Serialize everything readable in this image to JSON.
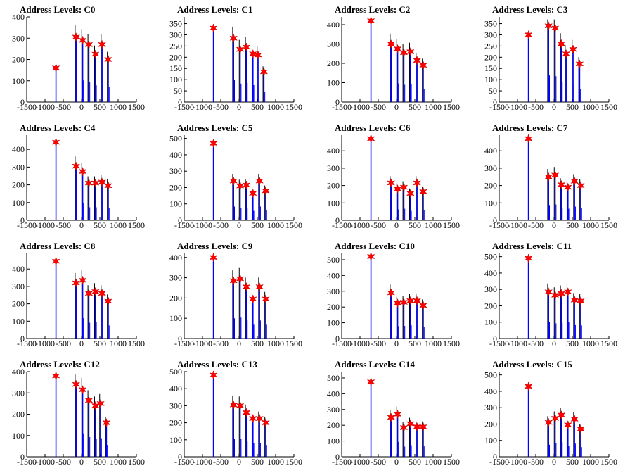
{
  "chart_data": [
    {
      "type": "bar",
      "title": "Address Levels: C0",
      "xlim": [
        -1500,
        1500
      ],
      "ylim": [
        0,
        400
      ],
      "xticks": [
        -1500,
        -1000,
        -500,
        0,
        500,
        1000,
        1500
      ],
      "yticks": [
        0,
        100,
        200,
        300,
        400
      ],
      "xtick_labels": [
        "-1500",
        "-1000",
        "-500",
        "0",
        "500",
        "1000",
        "1500"
      ],
      "ytick_labels": [
        "0",
        "100",
        "200",
        "300",
        "400"
      ],
      "peaks": [
        {
          "x": -700,
          "y": 160
        },
        {
          "x": -150,
          "y": 305
        },
        {
          "x": 30,
          "y": 290
        },
        {
          "x": 200,
          "y": 270
        },
        {
          "x": 380,
          "y": 225
        },
        {
          "x": 560,
          "y": 270
        },
        {
          "x": 730,
          "y": 200
        }
      ]
    },
    {
      "type": "bar",
      "title": "Address Levels: C1",
      "xlim": [
        -1500,
        1500
      ],
      "ylim": [
        0,
        380
      ],
      "xticks": [
        -1500,
        -1000,
        -500,
        0,
        500,
        1000,
        1500
      ],
      "yticks": [
        0,
        50,
        100,
        150,
        200,
        250,
        300,
        350
      ],
      "xtick_labels": [
        "-1500",
        "-1000",
        "-500",
        "0",
        "500",
        "1000",
        "1500"
      ],
      "ytick_labels": [
        "0",
        "50",
        "100",
        "150",
        "200",
        "250",
        "300",
        "350"
      ],
      "peaks": [
        {
          "x": -700,
          "y": 330
        },
        {
          "x": -150,
          "y": 285
        },
        {
          "x": 30,
          "y": 235
        },
        {
          "x": 200,
          "y": 245
        },
        {
          "x": 380,
          "y": 215
        },
        {
          "x": 520,
          "y": 210
        },
        {
          "x": 680,
          "y": 135
        }
      ]
    },
    {
      "type": "bar",
      "title": "Address Levels: C2",
      "xlim": [
        -1500,
        1500
      ],
      "ylim": [
        0,
        440
      ],
      "xticks": [
        -1500,
        -1000,
        -500,
        0,
        500,
        1000,
        1500
      ],
      "yticks": [
        0,
        100,
        200,
        300,
        400
      ],
      "xtick_labels": [
        "-1500",
        "-1000",
        "-500",
        "0",
        "500",
        "1000",
        "1500"
      ],
      "ytick_labels": [
        "0",
        "100",
        "200",
        "300",
        "400"
      ],
      "peaks": [
        {
          "x": -700,
          "y": 420
        },
        {
          "x": -150,
          "y": 300
        },
        {
          "x": 30,
          "y": 275
        },
        {
          "x": 200,
          "y": 255
        },
        {
          "x": 380,
          "y": 260
        },
        {
          "x": 560,
          "y": 215
        },
        {
          "x": 730,
          "y": 190
        }
      ]
    },
    {
      "type": "bar",
      "title": "Address Levels: C3",
      "xlim": [
        -1500,
        1500
      ],
      "ylim": [
        0,
        380
      ],
      "xticks": [
        -1500,
        -1000,
        -500,
        0,
        500,
        1000,
        1500
      ],
      "yticks": [
        0,
        50,
        100,
        150,
        200,
        250,
        300,
        350
      ],
      "xtick_labels": [
        "-1500",
        "-1000",
        "-500",
        "0",
        "500",
        "1000",
        "1500"
      ],
      "ytick_labels": [
        "0",
        "50",
        "100",
        "150",
        "200",
        "250",
        "300",
        "350"
      ],
      "peaks": [
        {
          "x": -700,
          "y": 300
        },
        {
          "x": -150,
          "y": 340
        },
        {
          "x": 30,
          "y": 330
        },
        {
          "x": 200,
          "y": 260
        },
        {
          "x": 330,
          "y": 215
        },
        {
          "x": 520,
          "y": 235
        },
        {
          "x": 700,
          "y": 170
        }
      ]
    },
    {
      "type": "bar",
      "title": "Address Levels: C4",
      "xlim": [
        -1500,
        1500
      ],
      "ylim": [
        0,
        480
      ],
      "xticks": [
        -1500,
        -1000,
        -500,
        0,
        500,
        1000,
        1500
      ],
      "yticks": [
        0,
        100,
        200,
        300,
        400
      ],
      "xtick_labels": [
        "-1500",
        "-1000",
        "-500",
        "0",
        "500",
        "1000",
        "1500"
      ],
      "ytick_labels": [
        "0",
        "100",
        "200",
        "300",
        "400"
      ],
      "peaks": [
        {
          "x": -700,
          "y": 440
        },
        {
          "x": -150,
          "y": 305
        },
        {
          "x": 30,
          "y": 275
        },
        {
          "x": 200,
          "y": 210
        },
        {
          "x": 380,
          "y": 210
        },
        {
          "x": 560,
          "y": 215
        },
        {
          "x": 730,
          "y": 195
        }
      ]
    },
    {
      "type": "bar",
      "title": "Address Levels: C5",
      "xlim": [
        -1500,
        1500
      ],
      "ylim": [
        0,
        520
      ],
      "xticks": [
        -1500,
        -1000,
        -500,
        0,
        500,
        1000,
        1500
      ],
      "yticks": [
        0,
        100,
        200,
        300,
        400,
        500
      ],
      "xtick_labels": [
        "-1500",
        "-1000",
        "-500",
        "0",
        "500",
        "1000",
        "1500"
      ],
      "ytick_labels": [
        "0",
        "100",
        "200",
        "300",
        "400",
        "500"
      ],
      "peaks": [
        {
          "x": -700,
          "y": 470
        },
        {
          "x": -150,
          "y": 240
        },
        {
          "x": 30,
          "y": 210
        },
        {
          "x": 200,
          "y": 215
        },
        {
          "x": 380,
          "y": 165
        },
        {
          "x": 560,
          "y": 240
        },
        {
          "x": 730,
          "y": 180
        }
      ]
    },
    {
      "type": "bar",
      "title": "Address Levels: C6",
      "xlim": [
        -1500,
        1500
      ],
      "ylim": [
        0,
        490
      ],
      "xticks": [
        -1500,
        -1000,
        -500,
        0,
        500,
        1000,
        1500
      ],
      "yticks": [
        0,
        100,
        200,
        300,
        400
      ],
      "xtick_labels": [
        "-1500",
        "-1000",
        "-500",
        "0",
        "500",
        "1000",
        "1500"
      ],
      "ytick_labels": [
        "0",
        "100",
        "200",
        "300",
        "400"
      ],
      "peaks": [
        {
          "x": -700,
          "y": 470
        },
        {
          "x": -150,
          "y": 215
        },
        {
          "x": 30,
          "y": 180
        },
        {
          "x": 200,
          "y": 190
        },
        {
          "x": 380,
          "y": 155
        },
        {
          "x": 560,
          "y": 215
        },
        {
          "x": 730,
          "y": 165
        }
      ]
    },
    {
      "type": "bar",
      "title": "Address Levels: C7",
      "xlim": [
        -1500,
        1500
      ],
      "ylim": [
        0,
        490
      ],
      "xticks": [
        -1500,
        -1000,
        -500,
        0,
        500,
        1000,
        1500
      ],
      "yticks": [
        0,
        100,
        200,
        300,
        400
      ],
      "xtick_labels": [
        "-1500",
        "-1000",
        "-500",
        "0",
        "500",
        "1000",
        "1500"
      ],
      "ytick_labels": [
        "0",
        "100",
        "200",
        "300",
        "400"
      ],
      "peaks": [
        {
          "x": -700,
          "y": 470
        },
        {
          "x": -150,
          "y": 250
        },
        {
          "x": 30,
          "y": 260
        },
        {
          "x": 200,
          "y": 205
        },
        {
          "x": 380,
          "y": 190
        },
        {
          "x": 560,
          "y": 225
        },
        {
          "x": 730,
          "y": 200
        }
      ]
    },
    {
      "type": "bar",
      "title": "Address Levels: C8",
      "xlim": [
        -1500,
        1500
      ],
      "ylim": [
        0,
        490
      ],
      "xticks": [
        -1500,
        -1000,
        -500,
        0,
        500,
        1000,
        1500
      ],
      "yticks": [
        0,
        100,
        200,
        300,
        400
      ],
      "xtick_labels": [
        "-1500",
        "-1000",
        "-500",
        "0",
        "500",
        "1000",
        "1500"
      ],
      "ytick_labels": [
        "0",
        "100",
        "200",
        "300",
        "400"
      ],
      "peaks": [
        {
          "x": -700,
          "y": 445
        },
        {
          "x": -150,
          "y": 320
        },
        {
          "x": 30,
          "y": 335
        },
        {
          "x": 200,
          "y": 260
        },
        {
          "x": 380,
          "y": 270
        },
        {
          "x": 560,
          "y": 260
        },
        {
          "x": 730,
          "y": 215
        }
      ]
    },
    {
      "type": "bar",
      "title": "Address Levels: C9",
      "xlim": [
        -1500,
        1500
      ],
      "ylim": [
        0,
        420
      ],
      "xticks": [
        -1500,
        -1000,
        -500,
        0,
        500,
        1000,
        1500
      ],
      "yticks": [
        0,
        100,
        200,
        300,
        400
      ],
      "xtick_labels": [
        "-1500",
        "-1000",
        "-500",
        "0",
        "500",
        "1000",
        "1500"
      ],
      "ytick_labels": [
        "0",
        "100",
        "200",
        "300",
        "400"
      ],
      "peaks": [
        {
          "x": -700,
          "y": 400
        },
        {
          "x": -150,
          "y": 285
        },
        {
          "x": 30,
          "y": 295
        },
        {
          "x": 200,
          "y": 255
        },
        {
          "x": 380,
          "y": 195
        },
        {
          "x": 560,
          "y": 255
        },
        {
          "x": 730,
          "y": 195
        }
      ]
    },
    {
      "type": "bar",
      "title": "Address Levels: C10",
      "xlim": [
        -1500,
        1500
      ],
      "ylim": [
        0,
        540
      ],
      "xticks": [
        -1500,
        -1000,
        -500,
        0,
        500,
        1000,
        1500
      ],
      "yticks": [
        0,
        100,
        200,
        300,
        400,
        500
      ],
      "xtick_labels": [
        "-1500",
        "-1000",
        "-500",
        "0",
        "500",
        "1000",
        "1500"
      ],
      "ytick_labels": [
        "0",
        "100",
        "200",
        "300",
        "400",
        "500"
      ],
      "peaks": [
        {
          "x": -700,
          "y": 520
        },
        {
          "x": -150,
          "y": 290
        },
        {
          "x": 30,
          "y": 225
        },
        {
          "x": 200,
          "y": 230
        },
        {
          "x": 380,
          "y": 240
        },
        {
          "x": 560,
          "y": 240
        },
        {
          "x": 730,
          "y": 210
        }
      ]
    },
    {
      "type": "bar",
      "title": "Address Levels: C11",
      "xlim": [
        -1500,
        1500
      ],
      "ylim": [
        0,
        520
      ],
      "xticks": [
        -1500,
        -1000,
        -500,
        0,
        500,
        1000,
        1500
      ],
      "yticks": [
        0,
        100,
        200,
        300,
        400,
        500
      ],
      "xtick_labels": [
        "-1500",
        "-1000",
        "-500",
        "0",
        "500",
        "1000",
        "1500"
      ],
      "ytick_labels": [
        "0",
        "100",
        "200",
        "300",
        "400",
        "500"
      ],
      "peaks": [
        {
          "x": -700,
          "y": 490
        },
        {
          "x": -150,
          "y": 285
        },
        {
          "x": 30,
          "y": 265
        },
        {
          "x": 200,
          "y": 275
        },
        {
          "x": 380,
          "y": 285
        },
        {
          "x": 560,
          "y": 235
        },
        {
          "x": 730,
          "y": 230
        }
      ]
    },
    {
      "type": "bar",
      "title": "Address Levels: C12",
      "xlim": [
        -1500,
        1500
      ],
      "ylim": [
        0,
        400
      ],
      "xticks": [
        -1500,
        -1000,
        -500,
        0,
        500,
        1000,
        1500
      ],
      "yticks": [
        0,
        100,
        200,
        300,
        400
      ],
      "xtick_labels": [
        "-1500",
        "-1000",
        "-500",
        "0",
        "500",
        "1000",
        "1500"
      ],
      "ytick_labels": [
        "0",
        "100",
        "200",
        "300",
        "400"
      ],
      "peaks": [
        {
          "x": -700,
          "y": 380
        },
        {
          "x": -150,
          "y": 340
        },
        {
          "x": 30,
          "y": 315
        },
        {
          "x": 200,
          "y": 265
        },
        {
          "x": 380,
          "y": 240
        },
        {
          "x": 520,
          "y": 250
        },
        {
          "x": 680,
          "y": 160
        }
      ]
    },
    {
      "type": "bar",
      "title": "Address Levels: C13",
      "xlim": [
        -1500,
        1500
      ],
      "ylim": [
        0,
        500
      ],
      "xticks": [
        -1500,
        -1000,
        -500,
        0,
        500,
        1000,
        1500
      ],
      "yticks": [
        0,
        100,
        200,
        300,
        400,
        500
      ],
      "xtick_labels": [
        "-1500",
        "-1000",
        "-500",
        "0",
        "500",
        "1000",
        "1500"
      ],
      "ytick_labels": [
        "0",
        "100",
        "200",
        "300",
        "400",
        "500"
      ],
      "peaks": [
        {
          "x": -700,
          "y": 480
        },
        {
          "x": -150,
          "y": 305
        },
        {
          "x": 30,
          "y": 300
        },
        {
          "x": 200,
          "y": 260
        },
        {
          "x": 380,
          "y": 225
        },
        {
          "x": 560,
          "y": 225
        },
        {
          "x": 730,
          "y": 200
        }
      ]
    },
    {
      "type": "bar",
      "title": "Address Levels: C14",
      "xlim": [
        -1500,
        1500
      ],
      "ylim": [
        0,
        540
      ],
      "xticks": [
        -1500,
        -1000,
        -500,
        0,
        500,
        1000,
        1500
      ],
      "yticks": [
        0,
        100,
        200,
        300,
        400,
        500
      ],
      "xtick_labels": [
        "-1500",
        "-1000",
        "-500",
        "0",
        "500",
        "1000",
        "1500"
      ],
      "ytick_labels": [
        "0",
        "100",
        "200",
        "300",
        "400",
        "500"
      ],
      "peaks": [
        {
          "x": -700,
          "y": 475
        },
        {
          "x": -150,
          "y": 250
        },
        {
          "x": 30,
          "y": 270
        },
        {
          "x": 200,
          "y": 185
        },
        {
          "x": 380,
          "y": 210
        },
        {
          "x": 560,
          "y": 190
        },
        {
          "x": 730,
          "y": 190
        }
      ]
    },
    {
      "type": "bar",
      "title": "Address Levels: C15",
      "xlim": [
        -1500,
        1500
      ],
      "ylim": [
        0,
        520
      ],
      "xticks": [
        -1500,
        -1000,
        -500,
        0,
        500,
        1000,
        1500
      ],
      "yticks": [
        0,
        100,
        200,
        300,
        400,
        500
      ],
      "xtick_labels": [
        "-1500",
        "-1000",
        "-500",
        "0",
        "500",
        "1000",
        "1500"
      ],
      "ytick_labels": [
        "0",
        "100",
        "200",
        "300",
        "400",
        "500"
      ],
      "peaks": [
        {
          "x": -700,
          "y": 430
        },
        {
          "x": -150,
          "y": 210
        },
        {
          "x": 30,
          "y": 235
        },
        {
          "x": 200,
          "y": 255
        },
        {
          "x": 380,
          "y": 195
        },
        {
          "x": 560,
          "y": 230
        },
        {
          "x": 730,
          "y": 170
        }
      ]
    }
  ],
  "colors": {
    "bar": "#0000ff",
    "bar_dark": "#000000",
    "marker": "#ff0000",
    "marker_edge": "#cc0000",
    "axis": "#000000"
  }
}
